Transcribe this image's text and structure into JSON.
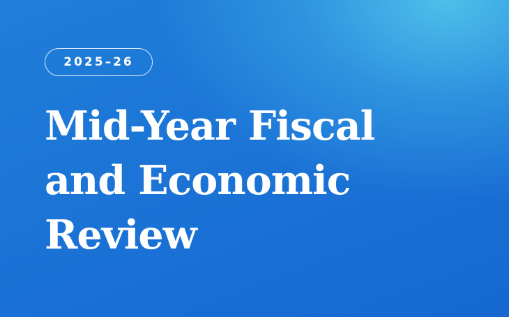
{
  "badge": {
    "label": "2025–26"
  },
  "title": {
    "lines": [
      "Mid-Year Fiscal",
      "and Economic",
      "Review"
    ]
  },
  "colors": {
    "background_start": "#1668d0",
    "background_highlight": "#50c3eb",
    "text": "#ffffff"
  }
}
